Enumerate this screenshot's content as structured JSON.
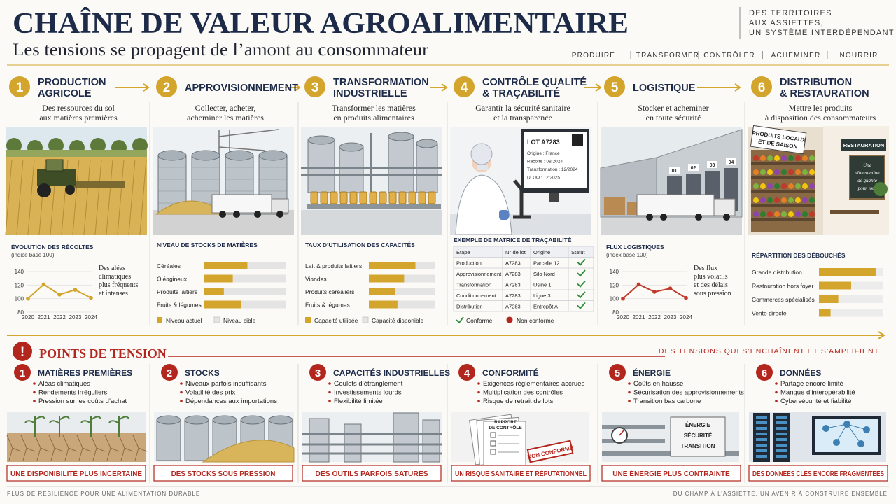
{
  "header": {
    "title": "CHAÎNE DE VALEUR AGROALIMENTAIRE",
    "subtitle": "Les tensions se propagent de l’amont au consommateur",
    "tagline": [
      "DES TERRITOIRES",
      "AUX ASSIETTES,",
      "UN SYSTÈME INTERDÉPENDANT"
    ],
    "nav": [
      "PRODUIRE",
      "TRANSFORMER",
      "CONTRÔLER",
      "ACHEMINER",
      "NOURRIR"
    ]
  },
  "steps": [
    {
      "number": "1",
      "title": [
        "PRODUCTION",
        "AGRICOLE"
      ],
      "subtitle": [
        "Des ressources du sol",
        "aux matières premières"
      ],
      "chart": {
        "type": "line",
        "title": "ÉVOLUTION DES RÉCOLTES",
        "subtitle": "(indice base 100)",
        "categories": [
          "2020",
          "2021",
          "2022",
          "2023",
          "2024"
        ],
        "values": [
          100,
          121,
          106,
          113,
          101
        ],
        "ylim": [
          80,
          140
        ],
        "yticks": [
          80,
          100,
          120,
          140
        ],
        "color": "#d4a52c",
        "note": [
          "Des aléas",
          "climatiques",
          "plus fréquents",
          "et intenses"
        ]
      }
    },
    {
      "number": "2",
      "title": [
        "APPROVISIONNEMENT"
      ],
      "subtitle": [
        "Collecter, acheter,",
        "acheminer les matières"
      ],
      "chart": {
        "type": "bar",
        "title": "NIVEAU DE STOCKS DE MATIÈRES",
        "categories": [
          "Céréales",
          "Oléagineux",
          "Produits laitiers",
          "Fruits & légumes"
        ],
        "values": [
          53,
          35,
          24,
          45
        ],
        "target_values": [
          100,
          100,
          100,
          100
        ],
        "xlim": [
          0,
          100
        ],
        "color": "#d4a52c",
        "target_color": "#e4e4e4",
        "legend": [
          "Niveau actuel",
          "Niveau cible"
        ]
      }
    },
    {
      "number": "3",
      "title": [
        "TRANSFORMATION",
        "INDUSTRIELLE"
      ],
      "subtitle": [
        "Transformer les matières",
        "en produits alimentaires"
      ],
      "chart": {
        "type": "bar",
        "title": "TAUX D’UTILISATION DES CAPACITÉS",
        "categories": [
          "Lait & produits laitiers",
          "Viandes",
          "Produits céréaliers",
          "Fruits & légumes"
        ],
        "values": [
          70,
          53,
          39,
          43
        ],
        "target_values": [
          100,
          100,
          100,
          100
        ],
        "xlim": [
          0,
          100
        ],
        "color": "#d4a52c",
        "target_color": "#e4e4e4",
        "legend": [
          "Capacité utilisée",
          "Capacité disponible"
        ]
      }
    },
    {
      "number": "4",
      "title": [
        "CONTRÔLE QUALITÉ",
        "& TRAÇABILITÉ"
      ],
      "subtitle": [
        "Garantir la sécurité sanitaire",
        "et la transparence"
      ],
      "image_labels": [
        "LOT A7283",
        "Origine : France",
        "Récolte : 08/2024",
        "Transformation : 12/2024",
        "DLUO : 12/2025"
      ],
      "chart": {
        "type": "table",
        "title": "EXEMPLE DE MATRICE DE TRAÇABILITÉ",
        "columns": [
          "Étape",
          "N° de lot",
          "Origine",
          "Statut"
        ],
        "rows": [
          [
            "Production",
            "A7283",
            "Parcelle 12"
          ],
          [
            "Approvisionnement",
            "A7283",
            "Silo Nord"
          ],
          [
            "Transformation",
            "A7283",
            "Usine 1"
          ],
          [
            "Conditionnement",
            "A7283",
            "Ligne 3"
          ],
          [
            "Distribution",
            "A7283",
            "Entrepôt A"
          ]
        ],
        "legend": [
          "Conforme",
          "Non conforme"
        ]
      }
    },
    {
      "number": "5",
      "title": [
        "LOGISTIQUE"
      ],
      "subtitle": [
        "Stocker et acheminer",
        "en toute sécurité"
      ],
      "image_labels": [
        "01",
        "02",
        "03",
        "04"
      ],
      "chart": {
        "type": "line",
        "title": "FLUX LOGISTIQUES",
        "subtitle": "(index base 100)",
        "categories": [
          "2020",
          "2021",
          "2022",
          "2023",
          "2024"
        ],
        "values": [
          100,
          121,
          110,
          115,
          101
        ],
        "ylim": [
          80,
          140
        ],
        "yticks": [
          80,
          100,
          120,
          140
        ],
        "color": "#c0392b",
        "note": [
          "Des flux",
          "plus volatils",
          "et des délais",
          "sous pression"
        ]
      }
    },
    {
      "number": "6",
      "title": [
        "DISTRIBUTION",
        "& RESTAURATION"
      ],
      "subtitle": [
        "Mettre les produits",
        "à disposition des consommateurs"
      ],
      "image_labels": [
        "PRODUITS LOCAUX",
        "ET DE SAISON",
        "RESTAURATION",
        "Une",
        "alimentation",
        "de qualité",
        "pour tous"
      ],
      "chart": {
        "type": "bar",
        "title": "RÉPARTITION DES DÉBOUCHÉS",
        "categories": [
          "Grande distribution",
          "Restauration hors foyer",
          "Commerces spécialisés",
          "Vente directe"
        ],
        "values": [
          88,
          50,
          30,
          18
        ],
        "target_values": [
          100,
          100,
          100,
          100
        ],
        "xlim": [
          0,
          100
        ],
        "color": "#d4a52c",
        "target_color": "#ececec"
      }
    }
  ],
  "tension": {
    "icon": "!",
    "title": "POINTS DE TENSION",
    "subtitle": "DES TENSIONS QUI S’ENCHAÎNENT ET S’AMPLIFIENT",
    "items": [
      {
        "number": "1",
        "title": "MATIÈRES PREMIÈRES",
        "bullets": [
          "Aléas climatiques",
          "Rendements irréguliers",
          "Pression sur les coûts d’achat"
        ],
        "caption": "UNE DISPONIBILITÉ PLUS INCERTAINE"
      },
      {
        "number": "2",
        "title": "STOCKS",
        "bullets": [
          "Niveaux parfois insuffisants",
          "Volatilité des prix",
          "Dépendances aux importations"
        ],
        "caption": "DES STOCKS SOUS PRESSION"
      },
      {
        "number": "3",
        "title": "CAPACITÉS INDUSTRIELLES",
        "bullets": [
          "Goulots d’étranglement",
          "Investissements lourds",
          "Flexibilité limitée"
        ],
        "caption": "DES OUTILS PARFOIS SATURÉS"
      },
      {
        "number": "4",
        "title": "CONFORMITÉ",
        "bullets": [
          "Exigences réglementaires accrues",
          "Multiplication des contrôles",
          "Risque de retrait de lots"
        ],
        "caption": "UN RISQUE SANITAIRE ET RÉPUTATIONNEL",
        "image_labels": [
          "RAPPORT",
          "DE CONTRÔLE",
          "NON CONFORME"
        ]
      },
      {
        "number": "5",
        "title": "ÉNERGIE",
        "bullets": [
          "Coûts en hausse",
          "Sécurisation des approvisionnements",
          "Transition bas carbone"
        ],
        "caption": "UNE ÉNERGIE PLUS CONTRAINTE",
        "image_labels": [
          "ÉNERGIE",
          "SÉCURITÉ",
          "TRANSITION"
        ]
      },
      {
        "number": "6",
        "title": "DONNÉES",
        "bullets": [
          "Partage encore limité",
          "Manque d’interopérabilité",
          "Cybersécurité et fiabilité"
        ],
        "caption": "DES DONNÉES CLÉS ENCORE FRAGMENTÉES"
      }
    ]
  },
  "footer": {
    "left": "PLUS DE RÉSILIENCE POUR UNE ALIMENTATION DURABLE",
    "right": "DU CHAMP À L’ASSIETTE, UN AVENIR À CONSTRUIRE ENSEMBLE"
  }
}
